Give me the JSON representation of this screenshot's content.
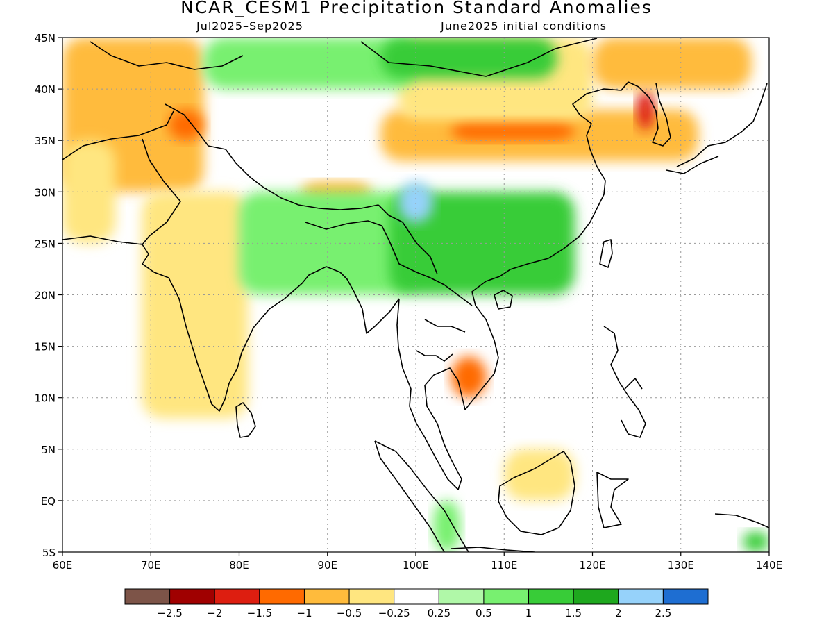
{
  "title": "NCAR_CESM1 Precipitation Standard Anomalies",
  "period": "Jul2025–Sep2025",
  "init": "June2025 initial conditions",
  "lat_labels": [
    "45N",
    "40N",
    "35N",
    "30N",
    "25N",
    "20N",
    "15N",
    "10N",
    "5N",
    "EQ",
    "5S"
  ],
  "lon_labels": [
    "60E",
    "70E",
    "80E",
    "90E",
    "100E",
    "110E",
    "120E",
    "130E",
    "140E"
  ],
  "colorbar": {
    "colors": [
      "#7d5448",
      "#a00000",
      "#dd1e10",
      "#ff6a00",
      "#ffbb3c",
      "#ffe680",
      "#ffffff",
      "#b0f8a8",
      "#78f070",
      "#38cc38",
      "#1ea81e",
      "#96d2fa",
      "#1e6ed2"
    ],
    "labels": [
      "−2.5",
      "−2",
      "−1.5",
      "−1",
      "−0.5",
      "−0.25",
      "0.25",
      "0.5",
      "1",
      "1.5",
      "2",
      "2.5"
    ]
  },
  "chart_data": {
    "type": "heatmap",
    "title": "NCAR_CESM1 Precipitation Standard Anomalies",
    "subtitle": "Jul2025–Sep2025",
    "x_range": [
      60,
      140
    ],
    "y_range": [
      -5,
      45
    ],
    "bounds": [
      -2.5,
      -2,
      -1.5,
      -1,
      -0.5,
      -0.25,
      0.25,
      0.5,
      1,
      1.5,
      2,
      2.5
    ],
    "anomaly_regions": [
      {
        "lon": [
          60,
          76
        ],
        "lat": [
          30,
          45
        ],
        "value": -0.6
      },
      {
        "lon": [
          60,
          66
        ],
        "lat": [
          25,
          35
        ],
        "value": -0.5
      },
      {
        "lon": [
          69,
          81
        ],
        "lat": [
          8,
          30
        ],
        "value": -0.4
      },
      {
        "lon": [
          72,
          76
        ],
        "lat": [
          35,
          38
        ],
        "value": -1.3
      },
      {
        "lon": [
          87,
          95
        ],
        "lat": [
          29,
          31
        ],
        "value": -0.9
      },
      {
        "lon": [
          96,
          132
        ],
        "lat": [
          33,
          38
        ],
        "value": -0.8
      },
      {
        "lon": [
          104,
          118
        ],
        "lat": [
          35,
          37
        ],
        "value": -1.4
      },
      {
        "lon": [
          125,
          127
        ],
        "lat": [
          36,
          40
        ],
        "value": -1.8
      },
      {
        "lon": [
          98,
          120
        ],
        "lat": [
          37,
          45
        ],
        "value": -0.4
      },
      {
        "lon": [
          120,
          138
        ],
        "lat": [
          40,
          45
        ],
        "value": -0.7
      },
      {
        "lon": [
          80,
          100
        ],
        "lat": [
          20,
          30
        ],
        "value": 0.7
      },
      {
        "lon": [
          97,
          118
        ],
        "lat": [
          20,
          30
        ],
        "value": 1.0
      },
      {
        "lon": [
          98,
          102
        ],
        "lat": [
          27,
          31
        ],
        "value": 2.2
      },
      {
        "lon": [
          76,
          100
        ],
        "lat": [
          40,
          45
        ],
        "value": 0.6
      },
      {
        "lon": [
          96,
          116
        ],
        "lat": [
          41,
          45
        ],
        "value": 1.0
      },
      {
        "lon": [
          104,
          108
        ],
        "lat": [
          10,
          14
        ],
        "value": -1.2
      },
      {
        "lon": [
          110,
          118
        ],
        "lat": [
          0,
          5
        ],
        "value": -0.5
      },
      {
        "lon": [
          102,
          105
        ],
        "lat": [
          -5,
          0
        ],
        "value": 0.8
      },
      {
        "lon": [
          137,
          140
        ],
        "lat": [
          -5,
          -3
        ],
        "value": 1.0
      }
    ]
  }
}
